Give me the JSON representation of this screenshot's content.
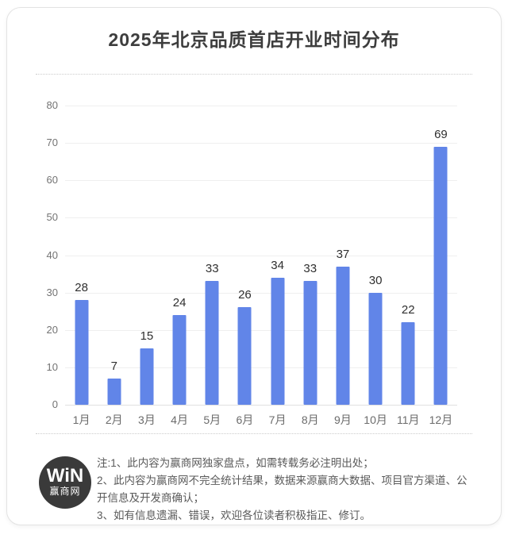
{
  "page": {
    "title": "2025年北京品质首店开业时间分布"
  },
  "chart_data": {
    "type": "bar",
    "title": "2025年北京品质首店开业时间分布",
    "categories": [
      "1月",
      "2月",
      "3月",
      "4月",
      "5月",
      "6月",
      "7月",
      "8月",
      "9月",
      "10月",
      "11月",
      "12月"
    ],
    "values": [
      28,
      7,
      15,
      24,
      33,
      26,
      34,
      33,
      37,
      30,
      22,
      69
    ],
    "xlabel": "",
    "ylabel": "",
    "ylim": [
      0,
      80
    ],
    "ytick_step": 10,
    "yticks": [
      0,
      10,
      20,
      30,
      40,
      50,
      60,
      70,
      80
    ],
    "grid": "horizontal",
    "legend": "none",
    "bar_color": "#6185e8",
    "value_labels_shown": true
  },
  "footer": {
    "logo": {
      "brand_top": "WiN",
      "brand_bottom": "赢商网"
    },
    "notes": [
      "注:1、此内容为赢商网独家盘点，如需转载务必注明出处；",
      "2、此内容为赢商网不完全统计结果，数据来源赢商大数据、项目官方渠道、公开信息及开发商确认；",
      "3、如有信息遗漏、错误，欢迎各位读者积极指正、修订。"
    ]
  }
}
